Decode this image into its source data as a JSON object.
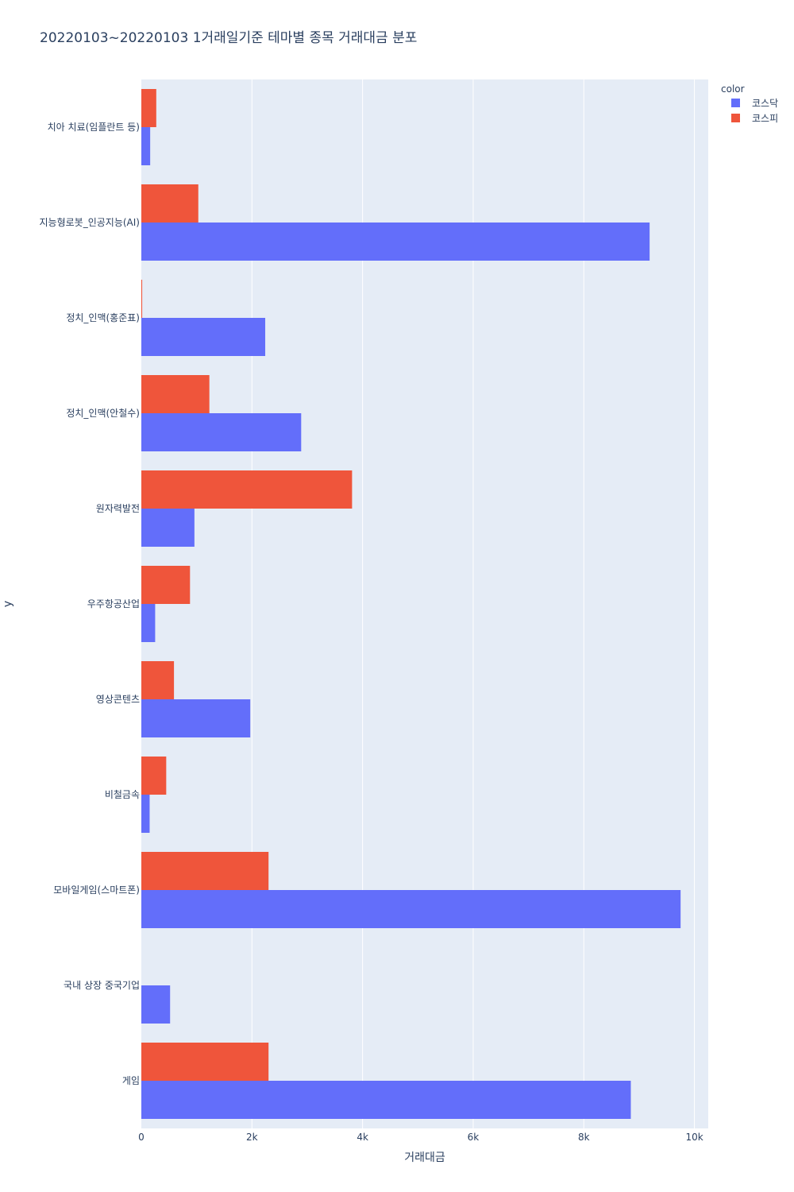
{
  "chart_data": {
    "type": "bar",
    "orientation": "horizontal",
    "barmode": "group",
    "title": "20220103~20220103 1거래일기준 테마별 종목 거래대금 분포",
    "xlabel": "거래대금",
    "ylabel": "y",
    "xlim": [
      0,
      10250
    ],
    "x_ticks": [
      0,
      2000,
      4000,
      6000,
      8000,
      10000
    ],
    "x_tick_labels": [
      "0",
      "2k",
      "4k",
      "6k",
      "8k",
      "10k"
    ],
    "legend_title": "color",
    "legend_position": "top-right",
    "categories": [
      "게임",
      "국내 상장 중국기업",
      "모바일게임(스마트폰)",
      "비철금속",
      "영상콘텐츠",
      "우주항공산업",
      "원자력발전",
      "정치_인맥(안철수)",
      "정치_인맥(홍준표)",
      "지능형로봇_인공지능(AI)",
      "치아 치료(임플란트 등)"
    ],
    "series": [
      {
        "name": "코스닥",
        "color": "#636efa",
        "values": [
          8850,
          520,
          9750,
          150,
          1970,
          250,
          960,
          2890,
          2240,
          9190,
          160
        ]
      },
      {
        "name": "코스피",
        "color": "#ef553b",
        "values": [
          2300,
          0,
          2300,
          450,
          590,
          880,
          3810,
          1230,
          15,
          1030,
          270
        ]
      }
    ]
  }
}
